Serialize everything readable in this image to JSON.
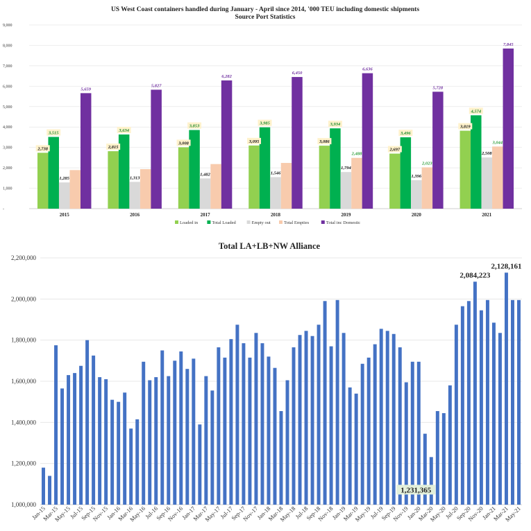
{
  "chart_data": [
    {
      "type": "bar",
      "title": "US West Coast containers handled during January - April since 2014, '000 TEU including domestic shipments",
      "subtitle": "Source Port Statistics",
      "categories": [
        "2015",
        "2016",
        "2017",
        "2018",
        "2019",
        "2020",
        "2021"
      ],
      "ylim": [
        0,
        9000
      ],
      "yticks": [
        "-",
        "1,000",
        "2,000",
        "3,000",
        "4,000",
        "5,000",
        "6,000",
        "7,000",
        "8,000",
        "9,000"
      ],
      "grid": true,
      "legend_position": "bottom",
      "series": [
        {
          "name": "Loaded in",
          "color": "#92d050",
          "values": [
            2738,
            2815,
            3008,
            3095,
            3086,
            2697,
            3819
          ],
          "labels": [
            "2,738",
            "2,815",
            "3,008",
            "3,095",
            "3,086",
            "2,697",
            "3,819"
          ],
          "label_color": "#111111",
          "label_bg": "#fff2cc"
        },
        {
          "name": "Total Loaded",
          "color": "#00b050",
          "values": [
            3515,
            3634,
            3853,
            3985,
            3934,
            3496,
            4574
          ],
          "labels": [
            "3,515",
            "3,634",
            "3,853",
            "3,985",
            "3,934",
            "3,496",
            "4,574"
          ],
          "label_color": "#1e8c2e",
          "label_bg": "#fff2cc"
        },
        {
          "name": "Empty out",
          "color": "#d9d9d9",
          "values": [
            1285,
            1313,
            1482,
            1546,
            1794,
            1396,
            2508
          ],
          "labels": [
            "1,285",
            "1,313",
            "1,482",
            "1,546",
            "1,794",
            "1,396",
            "2,508"
          ],
          "label_color": "#111111",
          "label_bg": ""
        },
        {
          "name": "Total Empties",
          "color": "#f8cbad",
          "values": [
            1890,
            1935,
            2185,
            2240,
            2488,
            2023,
            3044
          ],
          "labels": [
            "",
            "",
            "",
            "",
            "2,488",
            "2,023",
            "3,044"
          ],
          "label_color": "#2e9e3a",
          "label_bg": ""
        },
        {
          "name": "Total inc Domestic",
          "color": "#7030a0",
          "values": [
            5659,
            5827,
            6282,
            6450,
            6636,
            5728,
            7845
          ],
          "labels": [
            "5,659",
            "5,827",
            "6,282",
            "6,450",
            "6,636",
            "5,728",
            "7,845"
          ],
          "label_color": "#7030a0",
          "label_bg": ""
        }
      ]
    },
    {
      "type": "bar",
      "title": "Total LA+LB+NW Alliance",
      "ylim": [
        1000000,
        2200000
      ],
      "yticks": [
        "1,000,000",
        "1,200,000",
        "1,400,000",
        "1,600,000",
        "1,800,000",
        "2,000,000",
        "2,200,000"
      ],
      "grid": true,
      "color": "#4472c4",
      "x": [
        "Jan-15",
        "Feb-15",
        "Mar-15",
        "Apr-15",
        "May-15",
        "Jun-15",
        "Jul-15",
        "Aug-15",
        "Sep-15",
        "Oct-15",
        "Nov-15",
        "Dec-15",
        "Jan-16",
        "Feb-16",
        "Mar-16",
        "Apr-16",
        "May-16",
        "Jun-16",
        "Jul-16",
        "Aug-16",
        "Sep-16",
        "Oct-16",
        "Nov-16",
        "Dec-16",
        "Jan-17",
        "Feb-17",
        "Mar-17",
        "Apr-17",
        "May-17",
        "Jun-17",
        "Jul-17",
        "Aug-17",
        "Sep-17",
        "Oct-17",
        "Nov-17",
        "Dec-17",
        "Jan-18",
        "Feb-18",
        "Mar-18",
        "Apr-18",
        "May-18",
        "Jun-18",
        "Jul-18",
        "Aug-18",
        "Sep-18",
        "Oct-18",
        "Nov-18",
        "Dec-18",
        "Jan-19",
        "Feb-19",
        "Mar-19",
        "Apr-19",
        "May-19",
        "Jun-19",
        "Jul-19",
        "Aug-19",
        "Sep-19",
        "Oct-19",
        "Nov-19",
        "Dec-19",
        "Jan-20",
        "Feb-20",
        "Mar-20",
        "Apr-20",
        "May-20",
        "Jun-20",
        "Jul-20",
        "Aug-20",
        "Sep-20",
        "Oct-20",
        "Nov-20",
        "Dec-20",
        "Jan-21",
        "Feb-21",
        "Mar-21",
        "Apr-21",
        "May-21"
      ],
      "values": [
        1180000,
        1140000,
        1775000,
        1565000,
        1630000,
        1640000,
        1675000,
        1800000,
        1725000,
        1620000,
        1610000,
        1510000,
        1500000,
        1545000,
        1370000,
        1415000,
        1695000,
        1605000,
        1620000,
        1750000,
        1625000,
        1700000,
        1745000,
        1660000,
        1710000,
        1390000,
        1625000,
        1555000,
        1765000,
        1715000,
        1805000,
        1875000,
        1785000,
        1715000,
        1835000,
        1785000,
        1720000,
        1665000,
        1455000,
        1605000,
        1765000,
        1825000,
        1845000,
        1820000,
        1875000,
        1990000,
        1770000,
        1995000,
        1835000,
        1570000,
        1540000,
        1685000,
        1715000,
        1780000,
        1855000,
        1845000,
        1830000,
        1765000,
        1595000,
        1695000,
        1695000,
        1345000,
        1231365,
        1455000,
        1445000,
        1580000,
        1875000,
        1965000,
        1990000,
        2084223,
        1945000,
        1995000,
        1885000,
        1835000,
        2128161,
        1995000,
        1995000
      ],
      "xtick_labels": [
        "Jan-15",
        "Mar-15",
        "May-15",
        "Jul-15",
        "Sep-15",
        "Nov-15",
        "Jan-16",
        "Mar-16",
        "May-16",
        "Jul-16",
        "Sep-16",
        "Nov-16",
        "Jan-17",
        "Mar-17",
        "May-17",
        "Jul-17",
        "Sep-17",
        "Nov-17",
        "Jan-18",
        "Mar-18",
        "May-18",
        "Jul-18",
        "Sep-18",
        "Nov-18",
        "Jan-19",
        "Mar-19",
        "May-19",
        "Jul-19",
        "Sep-19",
        "Nov-19",
        "Jan-20",
        "Mar-20",
        "May-20",
        "Jul-20",
        "Sep-20",
        "Nov-20",
        "Jan-21",
        "Mar-21",
        "May-21"
      ],
      "annotations": [
        {
          "text": "1,231,365",
          "month_index": 62,
          "boxed": true
        },
        {
          "text": "2,084,223",
          "month_index": 69,
          "boxed": false
        },
        {
          "text": "2,128,161",
          "month_index": 74,
          "boxed": false
        }
      ]
    }
  ]
}
